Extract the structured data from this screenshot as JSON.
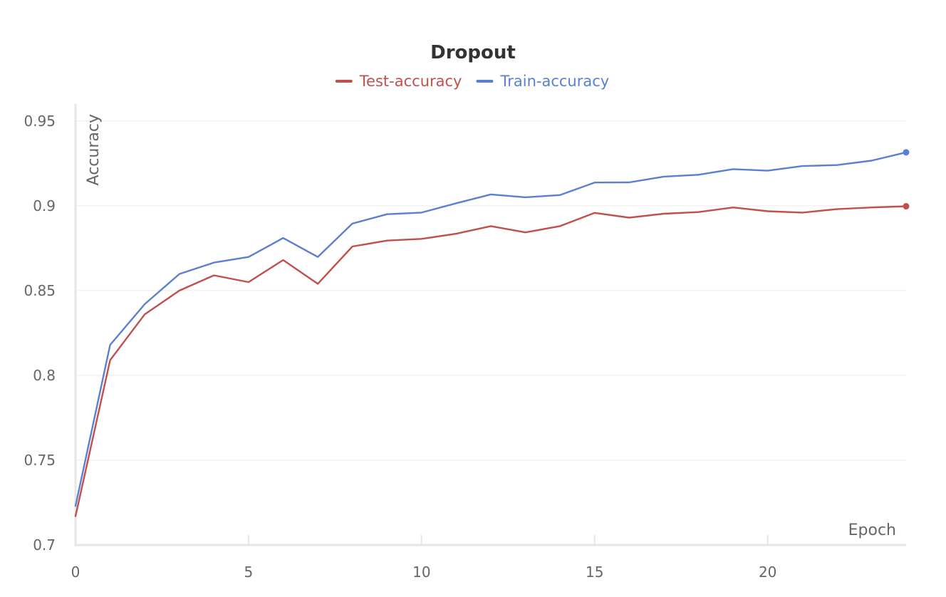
{
  "chart_data": {
    "type": "line",
    "title": "Dropout",
    "xlabel": "Epoch",
    "ylabel": "Accuracy",
    "xlim": [
      0,
      24
    ],
    "ylim": [
      0.7,
      0.96
    ],
    "x_ticks": [
      0,
      5,
      10,
      15,
      20
    ],
    "y_ticks": [
      0.7,
      0.75,
      0.8,
      0.85,
      0.9,
      0.95
    ],
    "y_tick_labels": [
      "0.7",
      "0.75",
      "0.8",
      "0.85",
      "0.9",
      "0.95"
    ],
    "grid": true,
    "legend_position": "top-center",
    "x": [
      0,
      1,
      2,
      3,
      4,
      5,
      6,
      7,
      8,
      9,
      10,
      11,
      12,
      13,
      14,
      15,
      16,
      17,
      18,
      19,
      20,
      21,
      22,
      23,
      24
    ],
    "series": [
      {
        "name": "Test-accuracy",
        "color": "#c0504d",
        "values": [
          0.717,
          0.809,
          0.836,
          0.85,
          0.859,
          0.855,
          0.868,
          0.854,
          0.876,
          0.8795,
          0.8805,
          0.8835,
          0.888,
          0.8843,
          0.888,
          0.8958,
          0.893,
          0.8953,
          0.8963,
          0.899,
          0.8968,
          0.896,
          0.898,
          0.899,
          0.8997
        ]
      },
      {
        "name": "Train-accuracy",
        "color": "#5b7fd1",
        "values": [
          0.723,
          0.818,
          0.842,
          0.8598,
          0.8665,
          0.8698,
          0.881,
          0.8698,
          0.8895,
          0.895,
          0.896,
          0.9015,
          0.9067,
          0.905,
          0.9063,
          0.9137,
          0.9138,
          0.9172,
          0.9183,
          0.9216,
          0.9207,
          0.9234,
          0.924,
          0.9266,
          0.9315
        ]
      }
    ]
  }
}
